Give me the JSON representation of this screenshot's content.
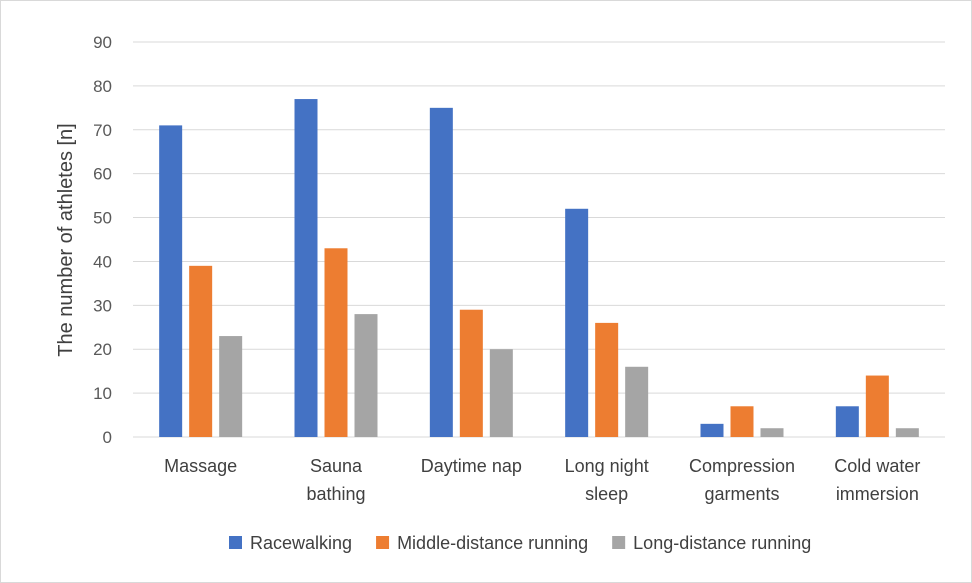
{
  "chart_data": {
    "type": "bar",
    "title": "",
    "xlabel": "",
    "ylabel": "The number of athletes [n]",
    "ylim": [
      0,
      90
    ],
    "yticks": [
      0,
      10,
      20,
      30,
      40,
      50,
      60,
      70,
      80,
      90
    ],
    "grid": true,
    "legend_position": "bottom",
    "categories": [
      [
        "Massage"
      ],
      [
        "Sauna",
        "bathing"
      ],
      [
        "Daytime nap"
      ],
      [
        "Long night",
        "sleep"
      ],
      [
        "Compression",
        "garments"
      ],
      [
        "Cold water",
        "immersion"
      ]
    ],
    "series": [
      {
        "name": "Racewalking",
        "color": "#4472C4",
        "values": [
          71,
          77,
          75,
          52,
          3,
          7
        ]
      },
      {
        "name": "Middle-distance running",
        "color": "#ED7D31",
        "values": [
          39,
          43,
          29,
          26,
          7,
          14
        ]
      },
      {
        "name": "Long-distance running",
        "color": "#A5A5A5",
        "values": [
          23,
          28,
          20,
          16,
          2,
          2
        ]
      }
    ]
  },
  "colors": {
    "gridline": "#d9d9d9",
    "border": "#d9d9d9"
  }
}
